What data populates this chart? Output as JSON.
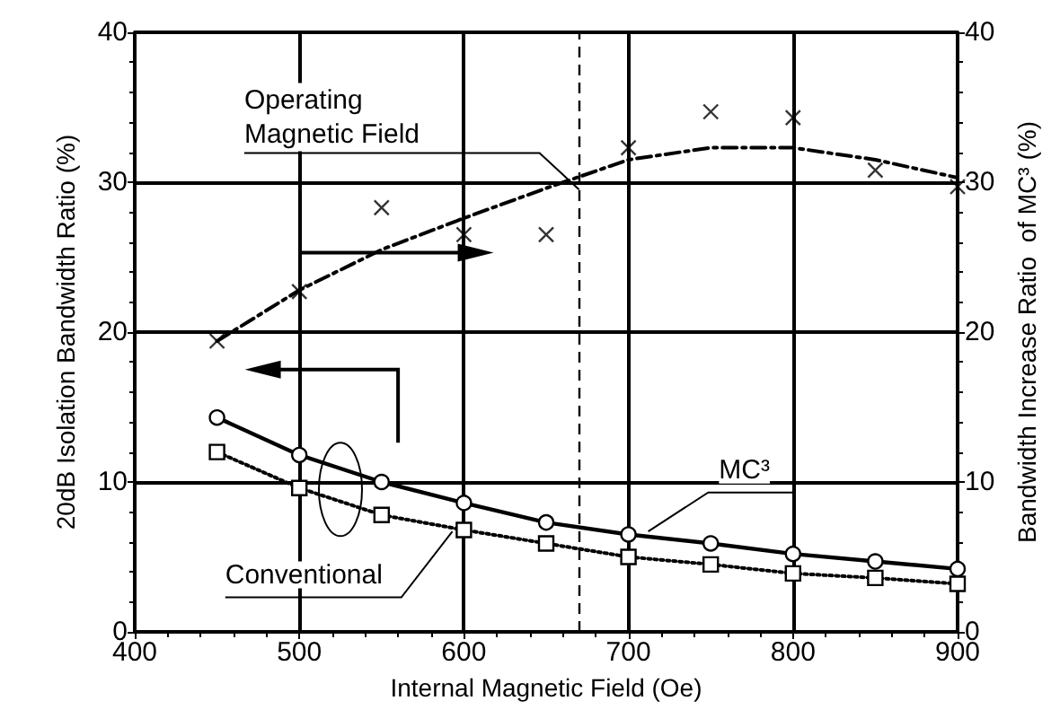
{
  "chart_data": {
    "type": "line",
    "xlabel": "Internal Magnetic Field (Oe)",
    "ylabel": "20dB Isolation Bandwidth Ratio (%)",
    "y2label": "Bandwidth Increase Ratio  of MC³ (%)",
    "x": [
      450,
      500,
      550,
      600,
      650,
      700,
      750,
      800,
      850,
      900
    ],
    "series": [
      {
        "name": "MC³",
        "color": "#000000",
        "marker": "circle",
        "line_style": "solid",
        "values": [
          14.3,
          11.8,
          10.0,
          8.6,
          7.3,
          6.5,
          5.9,
          5.2,
          4.7,
          4.2
        ]
      },
      {
        "name": "Conventional",
        "color": "#000000",
        "marker": "square",
        "line_style": "dotted",
        "values": [
          12.0,
          9.6,
          7.8,
          6.8,
          5.9,
          5.0,
          4.5,
          3.9,
          3.6,
          3.2
        ]
      },
      {
        "type": "scatter",
        "axis": "y2",
        "color": "#000000",
        "marker": "cross",
        "values": [
          19.4,
          22.7,
          28.3,
          26.5,
          26.5,
          32.3,
          34.7,
          34.3,
          30.8,
          29.7
        ]
      },
      {
        "type": "line",
        "axis": "y2",
        "color": "#000000",
        "marker": "none",
        "line_style": "dashed",
        "values": [
          19.4,
          22.8,
          25.5,
          27.6,
          29.6,
          31.5,
          32.3,
          32.3,
          31.5,
          30.3
        ]
      }
    ],
    "xlim": [
      400,
      900
    ],
    "xticks": [
      400,
      500,
      600,
      700,
      800,
      900
    ],
    "ylim": [
      0,
      40
    ],
    "yticks": [
      0,
      10,
      20,
      30,
      40
    ],
    "y2lim": [
      0,
      40
    ],
    "y2ticks": [
      0,
      10,
      20,
      30,
      40
    ],
    "ref_lines": [
      {
        "axis": "x",
        "value": 670,
        "label": "Operating Magnetic Field",
        "color": "#000000",
        "line_style": "dashed"
      }
    ],
    "grid": true,
    "legend": false
  }
}
